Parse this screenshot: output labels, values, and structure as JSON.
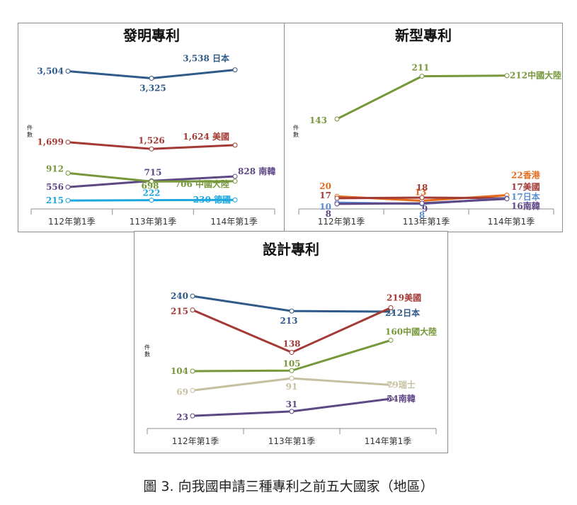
{
  "figure": {
    "caption": "圖 3. 向我國申請三種專利之前五大國家（地區）"
  },
  "chart_data": [
    {
      "type": "line",
      "title": "發明專利",
      "ylabel": "件數",
      "categories": [
        "112年第1季",
        "113年第1季",
        "114年第1季"
      ],
      "ylim": [
        0,
        4000
      ],
      "series": [
        {
          "name": "日本",
          "color": "#2f5a8a",
          "values": [
            3504,
            3325,
            3538
          ],
          "labels": [
            "3,504",
            "3,325",
            "3,538"
          ]
        },
        {
          "name": "美國",
          "color": "#a33a36",
          "values": [
            1699,
            1526,
            1624
          ],
          "labels": [
            "1,699",
            "1,526",
            "1,624"
          ]
        },
        {
          "name": "南韓",
          "color": "#5e4785",
          "values": [
            556,
            715,
            828
          ],
          "labels": [
            "556",
            "715",
            "828"
          ]
        },
        {
          "name": "中國大陸",
          "color": "#77973a",
          "values": [
            912,
            698,
            706
          ],
          "labels": [
            "912",
            "698",
            "706"
          ]
        },
        {
          "name": "德國",
          "color": "#1ea7df",
          "values": [
            215,
            222,
            230
          ],
          "labels": [
            "215",
            "222",
            "230"
          ]
        }
      ]
    },
    {
      "type": "line",
      "title": "新型專利",
      "ylabel": "件數",
      "categories": [
        "112年第1季",
        "113年第1季",
        "114年第1季"
      ],
      "ylim": [
        0,
        250
      ],
      "series": [
        {
          "name": "中國大陸",
          "color": "#77973a",
          "values": [
            143,
            211,
            212
          ],
          "labels": [
            "143",
            "211",
            "212"
          ]
        },
        {
          "name": "香港",
          "color": "#e36c1d",
          "values": [
            20,
            13,
            22
          ],
          "labels": [
            "20",
            "13",
            "22"
          ]
        },
        {
          "name": "美國",
          "color": "#a33a36",
          "values": [
            17,
            18,
            17
          ],
          "labels": [
            "17",
            "18",
            "17"
          ]
        },
        {
          "name": "日本",
          "color": "#5b8fd1",
          "values": [
            10,
            8,
            17
          ],
          "labels": [
            "10",
            "8",
            "17"
          ]
        },
        {
          "name": "南韓",
          "color": "#5e4785",
          "values": [
            8,
            9,
            16
          ],
          "labels": [
            "8",
            "9",
            "16"
          ]
        }
      ]
    },
    {
      "type": "line",
      "title": "設計專利",
      "ylabel": "件數",
      "categories": [
        "112年第1季",
        "113年第1季",
        "114年第1季"
      ],
      "ylim": [
        0,
        280
      ],
      "series": [
        {
          "name": "日本",
          "color": "#2f5a8a",
          "values": [
            240,
            213,
            212
          ],
          "labels": [
            "240",
            "213",
            "212"
          ]
        },
        {
          "name": "美國",
          "color": "#a33a36",
          "values": [
            215,
            138,
            219
          ],
          "labels": [
            "215",
            "138",
            "219"
          ]
        },
        {
          "name": "中國大陸",
          "color": "#77973a",
          "values": [
            104,
            105,
            160
          ],
          "labels": [
            "104",
            "105",
            "160"
          ]
        },
        {
          "name": "瑞士",
          "color": "#c7c0a0",
          "values": [
            69,
            91,
            79
          ],
          "labels": [
            "69",
            "91",
            "79"
          ]
        },
        {
          "name": "南韓",
          "color": "#5e4785",
          "values": [
            23,
            31,
            54
          ],
          "labels": [
            "23",
            "31",
            "54"
          ]
        }
      ]
    }
  ]
}
